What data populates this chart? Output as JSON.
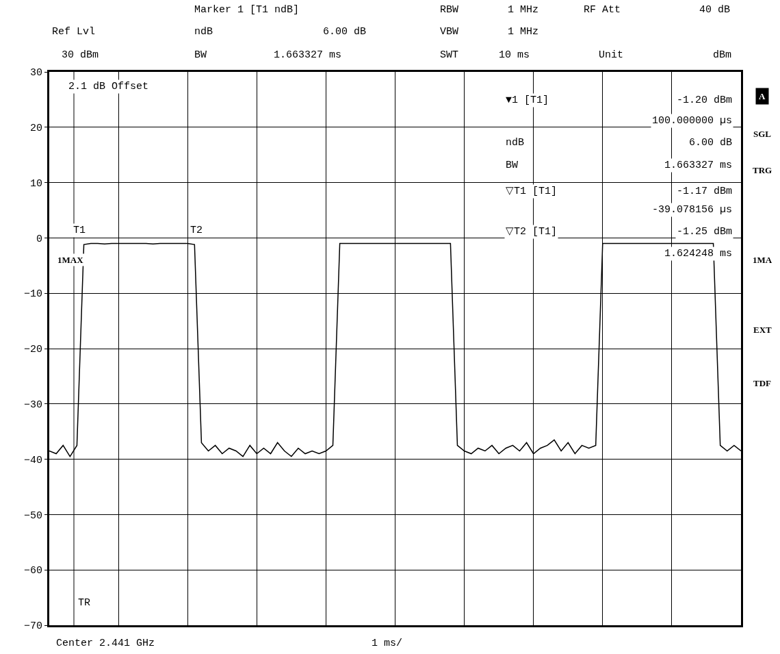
{
  "chart_data": {
    "type": "line",
    "categories": [
      null,
      null,
      null,
      null,
      null,
      null,
      null,
      null,
      null,
      null,
      null,
      null,
      null,
      null,
      null,
      null,
      null,
      null,
      null,
      null,
      null,
      null,
      null,
      null,
      null,
      null,
      null,
      null,
      null,
      null,
      null,
      null,
      null,
      null,
      null,
      null,
      null,
      null,
      null,
      null,
      null,
      null,
      null,
      null,
      null,
      null,
      null,
      null,
      null,
      null,
      null,
      null,
      null,
      null,
      null,
      null,
      null,
      null,
      null,
      null,
      null,
      null,
      null,
      null,
      null,
      null,
      null,
      null,
      null,
      null,
      null,
      null,
      null,
      null,
      null,
      null,
      null,
      null,
      null,
      null,
      null,
      null,
      null,
      null,
      null,
      null,
      null,
      null,
      null,
      null,
      null,
      null,
      null,
      null,
      null,
      null,
      null,
      null,
      null,
      null,
      null
    ],
    "series": [
      {
        "color": "#000000",
        "values": [
          -38.5,
          -39,
          -37.5,
          -39.5,
          -37.5,
          -1.2,
          -1.0,
          -1.0,
          -1.1,
          -1.0,
          -1.0,
          -1.0,
          -1.0,
          -1.0,
          -1.0,
          -1.1,
          -1.0,
          -1.0,
          -1.0,
          -1.0,
          -1.0,
          -1.2,
          -37,
          -38.5,
          -37.5,
          -39,
          -38,
          -38.5,
          -39.5,
          -37.5,
          -39,
          -38,
          -39,
          -37,
          -38.5,
          -39.5,
          -38,
          -39,
          -38.5,
          -39,
          -38.5,
          -37.5,
          -1.0,
          -1.0,
          -1.0,
          -1.0,
          -1.0,
          -1.0,
          -1.0,
          -1.0,
          -1.0,
          -1.0,
          -1.0,
          -1.0,
          -1.0,
          -1.0,
          -1.0,
          -1.0,
          -1.0,
          -37.5,
          -38.5,
          -39,
          -38,
          -38.5,
          -37.5,
          -39,
          -38,
          -37.5,
          -38.5,
          -37,
          -39,
          -38,
          -37.5,
          -36.5,
          -38.5,
          -37,
          -39,
          -37.5,
          -38,
          -37.5,
          -1.0,
          -1.0,
          -1.0,
          -1.0,
          -1.0,
          -1.0,
          -1.0,
          -1.0,
          -1.0,
          -1.0,
          -1.0,
          -1.0,
          -1.0,
          -1.0,
          -1.0,
          -1.0,
          -1.0,
          -37.5,
          -38.5,
          -37.5,
          -38.5
        ]
      }
    ],
    "ylim": [
      -70,
      30
    ],
    "yticks": [
      -70,
      -60,
      -50,
      -40,
      -30,
      -20,
      -10,
      0,
      10,
      20,
      30
    ],
    "grid": true,
    "legend": false,
    "tick_labels": "y",
    "marker": "none",
    "line_style": "solid",
    "annotations": [
      "Marker 1 [T1 ndB]",
      "RBW",
      "1 MHz",
      "RF Att",
      "40 dB",
      "Ref Lvl",
      "ndB",
      "6.00 dB",
      "VBW",
      "1 MHz",
      "30 dBm",
      "BW",
      "1.663327 ms",
      "SWT",
      "10 ms",
      "Unit",
      "dBm",
      "2.1 dB Offset",
      "1MAX",
      "T1",
      "T2",
      "▼1 [T1]",
      "-1.20 dBm",
      "100.000000 µs",
      "ndB",
      "6.00 dB",
      "BW",
      "1.663327 ms",
      "▽T1 [T1]",
      "-1.17 dBm",
      "-39.078156 µs",
      "▽T2 [T1]",
      "-1.25 dBm",
      "1.624248 ms",
      "A",
      "SGL",
      "TRG",
      "1MA",
      "EXT",
      "TDF",
      "Center 2.441 GHz",
      "1 ms/",
      "TR"
    ]
  }
}
